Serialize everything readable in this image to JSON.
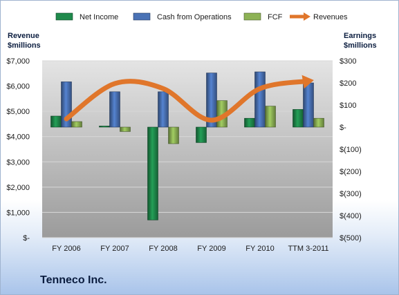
{
  "chart_data": {
    "type": "bar+line",
    "title": "Tenneco Inc.",
    "categories": [
      "FY 2006",
      "FY 2007",
      "FY 2008",
      "FY 2009",
      "FY 2010",
      "TTM 3-2011"
    ],
    "left_axis": {
      "label_line1": "Revenue",
      "label_line2": "$millions",
      "ylim": [
        0,
        7000
      ],
      "ticks": [
        0,
        1000,
        2000,
        3000,
        4000,
        5000,
        6000,
        7000
      ],
      "tick_labels": [
        "$-",
        "$1,000",
        "$2,000",
        "$3,000",
        "$4,000",
        "$5,000",
        "$6,000",
        "$7,000"
      ]
    },
    "right_axis": {
      "label_line1": "Earnings",
      "label_line2": "$millions",
      "ylim": [
        -500,
        300
      ],
      "ticks": [
        -500,
        -400,
        -300,
        -200,
        -100,
        0,
        100,
        200,
        300
      ],
      "tick_labels": [
        "$(500)",
        "$(400)",
        "$(300)",
        "$(200)",
        "$(100)",
        "$-",
        "$100",
        "$200",
        "$300"
      ]
    },
    "series": [
      {
        "name": "Net Income",
        "kind": "bar",
        "axis": "right",
        "color": "#1f8a4c",
        "values": [
          50,
          5,
          -420,
          -70,
          40,
          80
        ]
      },
      {
        "name": "Cash from Operations",
        "kind": "bar",
        "axis": "right",
        "color": "#4a72b5",
        "values": [
          205,
          160,
          160,
          245,
          250,
          200
        ]
      },
      {
        "name": "FCF",
        "kind": "bar",
        "axis": "right",
        "color": "#8db255",
        "values": [
          25,
          -20,
          -75,
          120,
          95,
          40
        ]
      },
      {
        "name": "Revenues",
        "kind": "line",
        "axis": "left",
        "color": "#e0762b",
        "values": [
          4700,
          6100,
          5900,
          4650,
          5900,
          6200
        ]
      }
    ],
    "grid": true,
    "legend": "top"
  }
}
